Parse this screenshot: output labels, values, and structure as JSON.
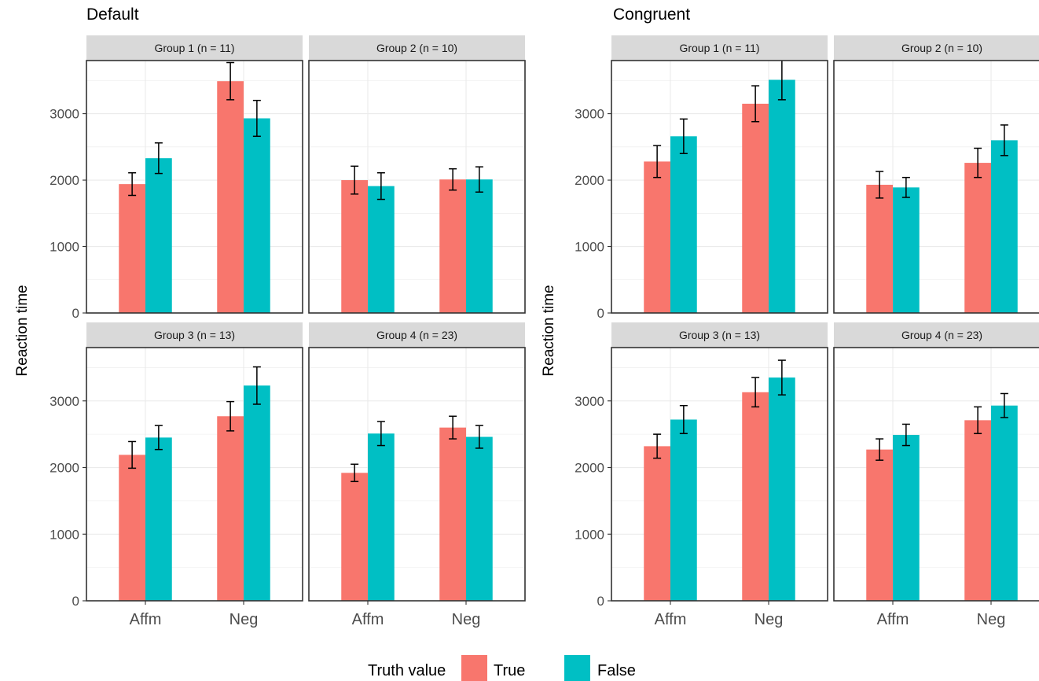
{
  "chart_data": [
    {
      "type": "bar",
      "title": "Default",
      "ylabel": "Reaction time",
      "ylim": [
        0,
        3800
      ],
      "yticks": [
        0,
        1000,
        2000,
        3000
      ],
      "categories": [
        "Affm",
        "Neg"
      ],
      "panels": [
        {
          "label": "Group 1  (n = 11)",
          "series": [
            {
              "name": "True",
              "values": [
                1940,
                3490
              ],
              "err": [
                170,
                280
              ]
            },
            {
              "name": "False",
              "values": [
                2330,
                2930
              ],
              "err": [
                230,
                270
              ]
            }
          ]
        },
        {
          "label": "Group 2 (n = 10)",
          "series": [
            {
              "name": "True",
              "values": [
                2000,
                2010
              ],
              "err": [
                210,
                160
              ]
            },
            {
              "name": "False",
              "values": [
                1910,
                2010
              ],
              "err": [
                200,
                190
              ]
            }
          ]
        },
        {
          "label": "Group 3 (n = 13)",
          "series": [
            {
              "name": "True",
              "values": [
                2190,
                2770
              ],
              "err": [
                200,
                220
              ]
            },
            {
              "name": "False",
              "values": [
                2450,
                3230
              ],
              "err": [
                180,
                280
              ]
            }
          ]
        },
        {
          "label": "Group 4 (n = 23)",
          "series": [
            {
              "name": "True",
              "values": [
                1920,
                2600
              ],
              "err": [
                130,
                170
              ]
            },
            {
              "name": "False",
              "values": [
                2510,
                2460
              ],
              "err": [
                180,
                170
              ]
            }
          ]
        }
      ]
    },
    {
      "type": "bar",
      "title": "Congruent",
      "ylabel": "Reaction time",
      "ylim": [
        0,
        3800
      ],
      "yticks": [
        0,
        1000,
        2000,
        3000
      ],
      "categories": [
        "Affm",
        "Neg"
      ],
      "panels": [
        {
          "label": "Group 1  (n = 11)",
          "series": [
            {
              "name": "True",
              "values": [
                2280,
                3150
              ],
              "err": [
                240,
                270
              ]
            },
            {
              "name": "False",
              "values": [
                2660,
                3510
              ],
              "err": [
                260,
                300
              ]
            }
          ]
        },
        {
          "label": "Group 2 (n = 10)",
          "series": [
            {
              "name": "True",
              "values": [
                1930,
                2260
              ],
              "err": [
                200,
                220
              ]
            },
            {
              "name": "False",
              "values": [
                1890,
                2600
              ],
              "err": [
                150,
                230
              ]
            }
          ]
        },
        {
          "label": "Group 3 (n = 13)",
          "series": [
            {
              "name": "True",
              "values": [
                2320,
                3130
              ],
              "err": [
                180,
                220
              ]
            },
            {
              "name": "False",
              "values": [
                2720,
                3350
              ],
              "err": [
                210,
                260
              ]
            }
          ]
        },
        {
          "label": "Group 4 (n = 23)",
          "series": [
            {
              "name": "True",
              "values": [
                2270,
                2710
              ],
              "err": [
                160,
                200
              ]
            },
            {
              "name": "False",
              "values": [
                2490,
                2930
              ],
              "err": [
                160,
                180
              ]
            }
          ]
        }
      ]
    }
  ],
  "legend": {
    "title": "Truth value",
    "items": [
      {
        "label": "True",
        "color": "#F8766D"
      },
      {
        "label": "False",
        "color": "#00BFC4"
      }
    ]
  },
  "colors": {
    "true_fill": "#F8766D",
    "false_fill": "#00BFC4",
    "strip_fill": "#d9d9d9",
    "grid": "#ebebeb",
    "panel_border": "#333333"
  }
}
